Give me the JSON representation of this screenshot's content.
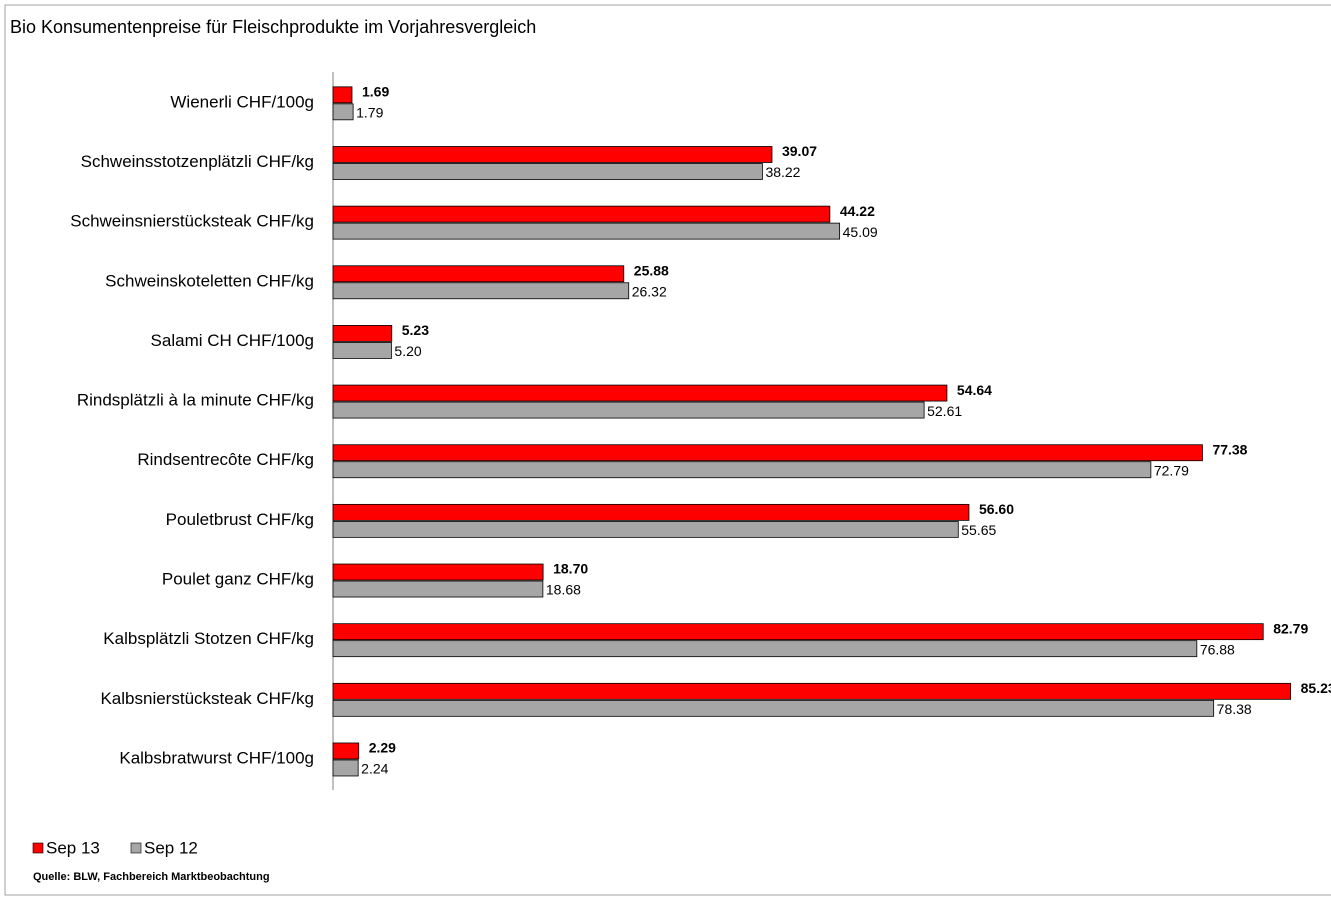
{
  "chart_data": {
    "type": "bar",
    "orientation": "horizontal",
    "title": "Bio Konsumentenpreise für Fleischprodukte im Vorjahresvergleich",
    "categories": [
      "Wienerli CHF/100g",
      "Schweinsstotzenplätzli CHF/kg",
      "Schweinsnierstücksteak CHF/kg",
      "Schweinskoteletten CHF/kg",
      "Salami CH CHF/100g",
      "Rindsplätzli à la minute CHF/kg",
      "Rindsentrecôte CHF/kg",
      "Pouletbrust CHF/kg",
      "Poulet ganz CHF/kg",
      "Kalbsplätzli Stotzen CHF/kg",
      "Kalbsnierstücksteak CHF/kg",
      "Kalbsbratwurst CHF/100g"
    ],
    "series": [
      {
        "name": "Sep 13",
        "color": "#ff0000",
        "values": [
          1.69,
          39.07,
          44.22,
          25.88,
          5.23,
          54.64,
          77.38,
          56.6,
          18.7,
          82.79,
          85.23,
          2.29
        ],
        "value_labels": [
          "1.69",
          "39.07",
          "44.22",
          "25.88",
          "5.23",
          "54.64",
          "77.38",
          "56.60",
          "18.70",
          "82.79",
          "85.23",
          "2.29"
        ]
      },
      {
        "name": "Sep 12",
        "color": "#a6a6a6",
        "values": [
          1.79,
          38.22,
          45.09,
          26.32,
          5.2,
          52.61,
          72.79,
          55.65,
          18.68,
          76.88,
          78.38,
          2.24
        ],
        "value_labels": [
          "1.79",
          "38.22",
          "45.09",
          "26.32",
          "5.20",
          "52.61",
          "72.79",
          "55.65",
          "18.68",
          "76.88",
          "78.38",
          "2.24"
        ]
      }
    ],
    "xlim": [
      0,
      89
    ],
    "source": "Quelle: BLW, Fachbereich Marktbeobachtung"
  }
}
